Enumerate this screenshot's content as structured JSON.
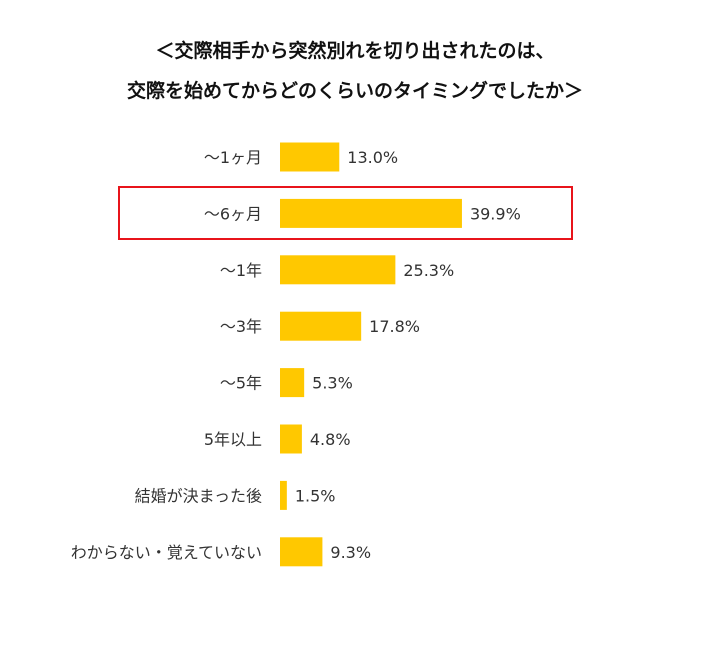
{
  "chart_data": {
    "type": "bar",
    "orientation": "horizontal",
    "title": [
      "＜交際相手から突然別れを切り出されたのは、",
      "交際を始めてからどのくらいのタイミングでしたか＞"
    ],
    "categories": [
      "〜1ヶ月",
      "〜6ヶ月",
      "〜1年",
      "〜3年",
      "〜5年",
      "5年以上",
      "結婚が決まった後",
      "わからない・覚えていない"
    ],
    "values": [
      13.0,
      39.9,
      25.3,
      17.8,
      5.3,
      4.8,
      1.5,
      9.3
    ],
    "value_labels": [
      "13.0%",
      "39.9%",
      "25.3%",
      "17.8%",
      "5.3%",
      "4.8%",
      "1.5%",
      "9.3%"
    ],
    "unit": "%",
    "highlighted_category": "〜6ヶ月",
    "grid": false,
    "colors": {
      "bar": "#FFC800",
      "highlight_box": "#E8141B"
    }
  }
}
